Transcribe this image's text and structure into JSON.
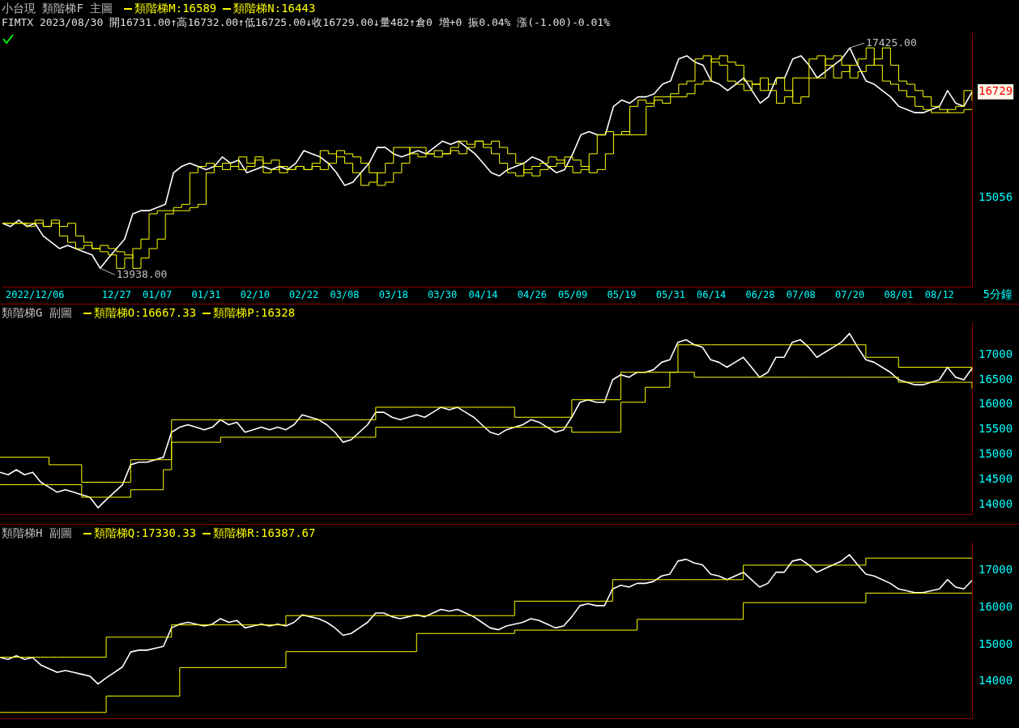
{
  "chart_data": [
    {
      "type": "line",
      "title": "小台現 類階梯F 主圖",
      "subtitle": "FIMTX 2023/08/30 開16731.00↑高16732.00↑低16725.00↓收16729.00↓量482↑倉0 增+0 振0.04% 漲(-1.00)-0.01%",
      "legend": "top left",
      "ylim": [
        13640,
        17670
      ],
      "yticks": [
        15056,
        16729
      ],
      "annotations": [
        {
          "text": "17425.00",
          "y": 17425
        },
        {
          "text": "13938.00",
          "y": 13938
        },
        "5分鐘"
      ],
      "categories": [
        null,
        null,
        null,
        null,
        "2022/12/06",
        null,
        null,
        null,
        null,
        null,
        null,
        null,
        null,
        null,
        "12/27",
        null,
        null,
        null,
        null,
        "01/07",
        null,
        null,
        null,
        null,
        null,
        "01/31",
        null,
        null,
        null,
        null,
        null,
        "02/10",
        null,
        null,
        null,
        null,
        null,
        "02/22",
        null,
        null,
        null,
        null,
        "03/08",
        null,
        null,
        null,
        null,
        null,
        "03/18",
        null,
        null,
        null,
        null,
        null,
        "03/30",
        null,
        null,
        null,
        null,
        "04/14",
        null,
        null,
        null,
        null,
        null,
        "04/26",
        null,
        null,
        null,
        null,
        "05/09",
        null,
        null,
        null,
        null,
        null,
        "05/19",
        null,
        null,
        null,
        null,
        null,
        "05/31",
        null,
        null,
        null,
        null,
        "06/14",
        null,
        null,
        null,
        null,
        null,
        "06/28",
        null,
        null,
        null,
        null,
        "07/08",
        null,
        null,
        null,
        null,
        null,
        "07/20",
        null,
        null,
        null,
        null,
        null,
        "08/01",
        null,
        null,
        null,
        null,
        "08/12",
        null,
        null,
        null,
        null
      ],
      "series": [
        {
          "color": "#ffffff",
          "values": [
            14650,
            14600,
            14700,
            14600,
            14650,
            14450,
            14350,
            14250,
            14300,
            14250,
            14200,
            14150,
            13938,
            14100,
            14250,
            14400,
            14800,
            14850,
            14850,
            14900,
            14950,
            15450,
            15550,
            15600,
            15550,
            15500,
            15550,
            15700,
            15600,
            15650,
            15450,
            15500,
            15550,
            15500,
            15550,
            15500,
            15600,
            15800,
            15750,
            15700,
            15600,
            15450,
            15250,
            15300,
            15450,
            15600,
            15850,
            15850,
            15750,
            15700,
            15750,
            15800,
            15750,
            15850,
            15950,
            15900,
            15950,
            15850,
            15750,
            15600,
            15450,
            15400,
            15500,
            15550,
            15600,
            15700,
            15650,
            15550,
            15450,
            15500,
            15750,
            16050,
            16100,
            16050,
            16050,
            16500,
            16600,
            16550,
            16650,
            16650,
            16700,
            16850,
            16900,
            17250,
            17300,
            17200,
            17150,
            16900,
            16850,
            16750,
            16850,
            16950,
            16750,
            16550,
            16650,
            16950,
            16950,
            17250,
            17300,
            17150,
            16950,
            17050,
            17150,
            17250,
            17425,
            17150,
            16900,
            16850,
            16750,
            16650,
            16500,
            16450,
            16400,
            16400,
            16450,
            16500,
            16750,
            16550,
            16500,
            16729
          ]
        },
        {
          "type": "step",
          "name": "類階梯M:16589",
          "color": "#ffff00",
          "values": [
            14650,
            14650,
            14650,
            14600,
            14700,
            14600,
            14650,
            14450,
            14350,
            14250,
            14300,
            14250,
            14200,
            14150,
            13938,
            14100,
            14250,
            14400,
            14800,
            14850,
            14850,
            14900,
            14950,
            15450,
            15550,
            15600,
            15550,
            15500,
            15550,
            15700,
            15600,
            15650,
            15450,
            15500,
            15550,
            15500,
            15550,
            15500,
            15600,
            15800,
            15750,
            15700,
            15600,
            15450,
            15250,
            15300,
            15450,
            15600,
            15850,
            15850,
            15750,
            15700,
            15750,
            15800,
            15750,
            15850,
            15950,
            15900,
            15950,
            15850,
            15750,
            15600,
            15450,
            15400,
            15500,
            15550,
            15600,
            15700,
            15650,
            15550,
            15450,
            15500,
            15750,
            16050,
            16100,
            16050,
            16050,
            16500,
            16600,
            16550,
            16650,
            16650,
            16700,
            16850,
            16900,
            17250,
            17300,
            17200,
            17150,
            16900,
            16850,
            16750,
            16850,
            16950,
            16750,
            16550,
            16650,
            16950,
            16950,
            17250,
            17300,
            17150,
            16950,
            17050,
            17150,
            17250,
            17425,
            17150,
            16900,
            16850,
            16750,
            16650,
            16500,
            16450,
            16400,
            16400,
            16450,
            16500,
            16750,
            16589
          ]
        },
        {
          "type": "step",
          "name": "類階梯N:16443",
          "color": "#ffff00",
          "values": [
            14650,
            14650,
            14650,
            14650,
            14650,
            14600,
            14700,
            14600,
            14650,
            14450,
            14350,
            14250,
            14300,
            14250,
            14200,
            14150,
            13938,
            14100,
            14250,
            14400,
            14800,
            14850,
            14850,
            14900,
            14950,
            15450,
            15550,
            15600,
            15550,
            15500,
            15550,
            15700,
            15600,
            15650,
            15450,
            15500,
            15550,
            15500,
            15550,
            15500,
            15600,
            15800,
            15750,
            15700,
            15600,
            15450,
            15250,
            15300,
            15450,
            15600,
            15850,
            15850,
            15750,
            15700,
            15750,
            15800,
            15750,
            15850,
            15950,
            15900,
            15950,
            15850,
            15750,
            15600,
            15450,
            15400,
            15500,
            15550,
            15600,
            15700,
            15650,
            15550,
            15450,
            15500,
            15750,
            16050,
            16100,
            16050,
            16050,
            16500,
            16600,
            16550,
            16650,
            16650,
            16700,
            16850,
            16900,
            17250,
            17300,
            17200,
            17150,
            16900,
            16850,
            16750,
            16850,
            16950,
            16750,
            16550,
            16650,
            16950,
            16950,
            17250,
            17300,
            17150,
            16950,
            17050,
            17150,
            17250,
            17425,
            17150,
            16900,
            16850,
            16750,
            16650,
            16500,
            16450,
            16400,
            16400,
            16450,
            16443
          ]
        }
      ]
    },
    {
      "type": "line",
      "title": "類階梯G 副圖",
      "legend": "top left",
      "tick_labels": "y",
      "ylim": [
        13800,
        17650
      ],
      "yticks": [
        14000,
        14500,
        15000,
        15500,
        16000,
        16500,
        17000
      ],
      "categories": [
        null,
        null,
        null,
        null,
        null,
        null,
        null,
        null,
        null,
        null,
        null,
        null,
        null,
        null,
        null,
        null,
        null,
        null,
        null,
        null,
        null,
        null,
        null,
        null,
        null,
        null,
        null,
        null,
        null,
        null,
        null,
        null,
        null,
        null,
        null,
        null,
        null,
        null,
        null,
        null,
        null,
        null,
        null,
        null,
        null,
        null,
        null,
        null,
        null,
        null,
        null,
        null,
        null,
        null,
        null,
        null,
        null,
        null,
        null,
        null,
        null,
        null,
        null,
        null,
        null,
        null,
        null,
        null,
        null,
        null,
        null,
        null,
        null,
        null,
        null,
        null,
        null,
        null,
        null,
        null,
        null,
        null,
        null,
        null,
        null,
        null,
        null,
        null,
        null,
        null,
        null,
        null,
        null,
        null,
        null,
        null,
        null,
        null,
        null,
        null,
        null,
        null,
        null,
        null,
        null,
        null,
        null,
        null,
        null,
        null,
        null,
        null,
        null,
        null,
        null,
        null,
        null,
        null,
        null,
        null
      ],
      "series": [
        {
          "color": "#ffffff",
          "values": [
            14650,
            14600,
            14700,
            14600,
            14650,
            14450,
            14350,
            14250,
            14300,
            14250,
            14200,
            14150,
            13938,
            14100,
            14250,
            14400,
            14800,
            14850,
            14850,
            14900,
            14950,
            15450,
            15550,
            15600,
            15550,
            15500,
            15550,
            15700,
            15600,
            15650,
            15450,
            15500,
            15550,
            15500,
            15550,
            15500,
            15600,
            15800,
            15750,
            15700,
            15600,
            15450,
            15250,
            15300,
            15450,
            15600,
            15850,
            15850,
            15750,
            15700,
            15750,
            15800,
            15750,
            15850,
            15950,
            15900,
            15950,
            15850,
            15750,
            15600,
            15450,
            15400,
            15500,
            15550,
            15600,
            15700,
            15650,
            15550,
            15450,
            15500,
            15750,
            16050,
            16100,
            16050,
            16050,
            16500,
            16600,
            16550,
            16650,
            16650,
            16700,
            16850,
            16900,
            17250,
            17300,
            17200,
            17150,
            16900,
            16850,
            16750,
            16850,
            16950,
            16750,
            16550,
            16650,
            16950,
            16950,
            17250,
            17300,
            17150,
            16950,
            17050,
            17150,
            17250,
            17425,
            17150,
            16900,
            16850,
            16750,
            16650,
            16500,
            16450,
            16400,
            16400,
            16450,
            16500,
            16750,
            16550,
            16500,
            16729
          ]
        },
        {
          "type": "step",
          "name": "類階梯O:16667.33",
          "color": "#ffff00",
          "values": [
            14950,
            14950,
            14950,
            14950,
            14950,
            14950,
            14800,
            14800,
            14800,
            14800,
            14450,
            14450,
            14450,
            14450,
            14450,
            14450,
            14900,
            14900,
            14900,
            14900,
            14900,
            15700,
            15700,
            15700,
            15700,
            15700,
            15700,
            15700,
            15700,
            15700,
            15700,
            15700,
            15700,
            15700,
            15700,
            15700,
            15700,
            15700,
            15700,
            15700,
            15700,
            15700,
            15700,
            15700,
            15700,
            15700,
            15950,
            15950,
            15950,
            15950,
            15950,
            15950,
            15950,
            15950,
            15950,
            15950,
            15950,
            15950,
            15950,
            15950,
            15950,
            15950,
            15950,
            15750,
            15750,
            15750,
            15750,
            15750,
            15750,
            15750,
            16100,
            16100,
            16100,
            16100,
            16100,
            16100,
            16650,
            16650,
            16650,
            16650,
            16650,
            16650,
            16650,
            17200,
            17200,
            17200,
            17200,
            17200,
            17200,
            17200,
            17200,
            17200,
            17200,
            17200,
            17200,
            17200,
            17200,
            17200,
            17200,
            17200,
            17200,
            17200,
            17200,
            17200,
            17200,
            17200,
            16950,
            16950,
            16950,
            16950,
            16750,
            16750,
            16750,
            16750,
            16750,
            16750,
            16750,
            16750,
            16750,
            16667.33
          ]
        },
        {
          "type": "step",
          "name": "類階梯P:16328",
          "color": "#ffff00",
          "values": [
            14400,
            14400,
            14400,
            14400,
            14400,
            14400,
            14400,
            14400,
            14400,
            14400,
            14150,
            14150,
            14150,
            14150,
            14150,
            14150,
            14300,
            14300,
            14300,
            14300,
            14700,
            15250,
            15250,
            15250,
            15250,
            15250,
            15250,
            15350,
            15350,
            15350,
            15350,
            15350,
            15350,
            15350,
            15350,
            15350,
            15350,
            15350,
            15350,
            15350,
            15350,
            15350,
            15350,
            15350,
            15350,
            15350,
            15550,
            15550,
            15550,
            15550,
            15550,
            15550,
            15550,
            15550,
            15550,
            15550,
            15550,
            15550,
            15550,
            15550,
            15550,
            15550,
            15550,
            15550,
            15550,
            15550,
            15550,
            15550,
            15550,
            15550,
            15450,
            15450,
            15450,
            15450,
            15450,
            15450,
            16050,
            16050,
            16050,
            16350,
            16350,
            16350,
            16650,
            16650,
            16650,
            16550,
            16550,
            16550,
            16550,
            16550,
            16550,
            16550,
            16550,
            16550,
            16550,
            16550,
            16550,
            16550,
            16550,
            16550,
            16550,
            16550,
            16550,
            16550,
            16550,
            16550,
            16550,
            16550,
            16550,
            16550,
            16450,
            16450,
            16450,
            16450,
            16450,
            16450,
            16450,
            16450,
            16450,
            16328
          ]
        }
      ]
    },
    {
      "type": "line",
      "title": "類階梯H 副圖",
      "legend": "top left",
      "tick_labels": "y",
      "ylim": [
        13000,
        17750
      ],
      "yticks": [
        14000,
        15000,
        16000,
        17000
      ],
      "categories": [
        null,
        null,
        null,
        null,
        null,
        null,
        null,
        null,
        null,
        null,
        null,
        null,
        null,
        null,
        null,
        null,
        null,
        null,
        null,
        null,
        null,
        null,
        null,
        null,
        null,
        null,
        null,
        null,
        null,
        null,
        null,
        null,
        null,
        null,
        null,
        null,
        null,
        null,
        null,
        null,
        null,
        null,
        null,
        null,
        null,
        null,
        null,
        null,
        null,
        null,
        null,
        null,
        null,
        null,
        null,
        null,
        null,
        null,
        null,
        null,
        null,
        null,
        null,
        null,
        null,
        null,
        null,
        null,
        null,
        null,
        null,
        null,
        null,
        null,
        null,
        null,
        null,
        null,
        null,
        null,
        null,
        null,
        null,
        null,
        null,
        null,
        null,
        null,
        null,
        null,
        null,
        null,
        null,
        null,
        null,
        null,
        null,
        null,
        null,
        null,
        null,
        null,
        null,
        null,
        null,
        null,
        null,
        null,
        null,
        null,
        null,
        null,
        null,
        null,
        null,
        null,
        null,
        null,
        null,
        null
      ],
      "series": [
        {
          "color": "#ffffff",
          "values": [
            14650,
            14600,
            14700,
            14600,
            14650,
            14450,
            14350,
            14250,
            14300,
            14250,
            14200,
            14150,
            13938,
            14100,
            14250,
            14400,
            14800,
            14850,
            14850,
            14900,
            14950,
            15450,
            15550,
            15600,
            15550,
            15500,
            15550,
            15700,
            15600,
            15650,
            15450,
            15500,
            15550,
            15500,
            15550,
            15500,
            15600,
            15800,
            15750,
            15700,
            15600,
            15450,
            15250,
            15300,
            15450,
            15600,
            15850,
            15850,
            15750,
            15700,
            15750,
            15800,
            15750,
            15850,
            15950,
            15900,
            15950,
            15850,
            15750,
            15600,
            15450,
            15400,
            15500,
            15550,
            15600,
            15700,
            15650,
            15550,
            15450,
            15500,
            15750,
            16050,
            16100,
            16050,
            16050,
            16500,
            16600,
            16550,
            16650,
            16650,
            16700,
            16850,
            16900,
            17250,
            17300,
            17200,
            17150,
            16900,
            16850,
            16750,
            16850,
            16950,
            16750,
            16550,
            16650,
            16950,
            16950,
            17250,
            17300,
            17150,
            16950,
            17050,
            17150,
            17250,
            17425,
            17150,
            16900,
            16850,
            16750,
            16650,
            16500,
            16450,
            16400,
            16400,
            16450,
            16500,
            16750,
            16550,
            16500,
            16729
          ]
        },
        {
          "type": "step",
          "name": "類階梯Q:17330.33",
          "color": "#ffff00",
          "values": [
            14660,
            14660,
            14660,
            14660,
            14660,
            14660,
            14660,
            14660,
            14660,
            14660,
            14660,
            14660,
            14660,
            15200,
            15200,
            15200,
            15200,
            15200,
            15200,
            15200,
            15200,
            15530,
            15530,
            15530,
            15530,
            15530,
            15530,
            15530,
            15530,
            15530,
            15530,
            15530,
            15530,
            15530,
            15530,
            15780,
            15780,
            15780,
            15780,
            15780,
            15780,
            15780,
            15780,
            15780,
            15780,
            15780,
            15780,
            15780,
            15780,
            15780,
            15780,
            15780,
            15780,
            15780,
            15780,
            15780,
            15780,
            15780,
            15780,
            15780,
            15780,
            15780,
            15780,
            16170,
            16170,
            16170,
            16170,
            16170,
            16170,
            16170,
            16170,
            16170,
            16170,
            16170,
            16170,
            16750,
            16750,
            16750,
            16750,
            16750,
            16750,
            16750,
            16750,
            16750,
            16750,
            16750,
            16750,
            16750,
            16750,
            16750,
            16750,
            17140,
            17140,
            17140,
            17140,
            17140,
            17140,
            17140,
            17140,
            17140,
            17140,
            17140,
            17140,
            17140,
            17140,
            17140,
            17330.33,
            17330.33,
            17330.33,
            17330.33,
            17330.33,
            17330.33,
            17330.33,
            17330.33,
            17330.33,
            17330.33,
            17330.33,
            17330.33,
            17330.33,
            17330.33
          ]
        },
        {
          "type": "step",
          "name": "類階梯R:16387.67",
          "color": "#ffff00",
          "values": [
            13170,
            13170,
            13170,
            13170,
            13170,
            13170,
            13170,
            13170,
            13170,
            13170,
            13170,
            13170,
            13170,
            13610,
            13610,
            13610,
            13610,
            13610,
            13610,
            13610,
            13610,
            13610,
            14380,
            14380,
            14380,
            14380,
            14380,
            14380,
            14380,
            14380,
            14380,
            14380,
            14380,
            14380,
            14380,
            14810,
            14810,
            14810,
            14810,
            14810,
            14810,
            14810,
            14810,
            14810,
            14810,
            14810,
            14810,
            14810,
            14810,
            14810,
            14810,
            15300,
            15300,
            15300,
            15300,
            15300,
            15300,
            15300,
            15300,
            15300,
            15300,
            15300,
            15300,
            15390,
            15390,
            15390,
            15390,
            15390,
            15390,
            15390,
            15390,
            15390,
            15390,
            15390,
            15390,
            15390,
            15390,
            15390,
            15680,
            15680,
            15680,
            15680,
            15680,
            15680,
            15680,
            15680,
            15680,
            15680,
            15680,
            15680,
            15680,
            16130,
            16130,
            16130,
            16130,
            16130,
            16130,
            16130,
            16130,
            16130,
            16130,
            16130,
            16130,
            16130,
            16130,
            16130,
            16387.67,
            16387.67,
            16387.67,
            16387.67,
            16387.67,
            16387.67,
            16387.67,
            16387.67,
            16387.67,
            16387.67,
            16387.67,
            16387.67,
            16387.67,
            16387.67
          ]
        }
      ]
    }
  ]
}
